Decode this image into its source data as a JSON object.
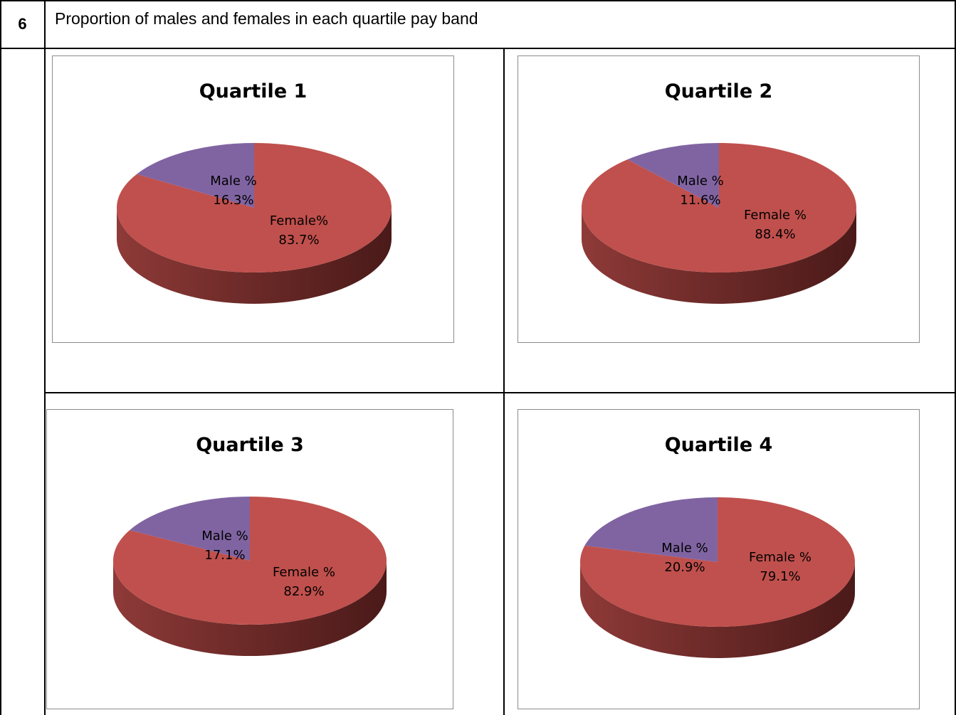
{
  "section": {
    "number": "6",
    "title": "Proportion of males and females in each quartile pay band"
  },
  "colors": {
    "female": "#c0504d",
    "male": "#8064a2",
    "female_side_light": "#8e3a38",
    "female_side_dark": "#4a1a19",
    "male_side": "#5f4a7a",
    "box_border": "#8c8c8c",
    "rule": "#000000"
  },
  "chart_data": [
    {
      "type": "pie",
      "title": "Quartile 1",
      "slices": [
        {
          "name": "Male %",
          "value": 16.3,
          "pct_label": "16.3%",
          "color": "#8064a2"
        },
        {
          "name": "Female%",
          "value": 83.7,
          "pct_label": "83.7%",
          "color": "#c0504d"
        }
      ],
      "three_d": true
    },
    {
      "type": "pie",
      "title": "Quartile 2",
      "slices": [
        {
          "name": "Male %",
          "value": 11.6,
          "pct_label": "11.6%",
          "color": "#8064a2"
        },
        {
          "name": "Female %",
          "value": 88.4,
          "pct_label": "88.4%",
          "color": "#c0504d"
        }
      ],
      "three_d": true
    },
    {
      "type": "pie",
      "title": "Quartile 3",
      "slices": [
        {
          "name": "Male %",
          "value": 17.1,
          "pct_label": "17.1%",
          "color": "#8064a2"
        },
        {
          "name": "Female %",
          "value": 82.9,
          "pct_label": "82.9%",
          "color": "#c0504d"
        }
      ],
      "three_d": true
    },
    {
      "type": "pie",
      "title": "Quartile 4",
      "slices": [
        {
          "name": "Male %",
          "value": 20.9,
          "pct_label": "20.9%",
          "color": "#8064a2"
        },
        {
          "name": "Female %",
          "value": 79.1,
          "pct_label": "79.1%",
          "color": "#c0504d"
        }
      ],
      "three_d": true
    }
  ]
}
